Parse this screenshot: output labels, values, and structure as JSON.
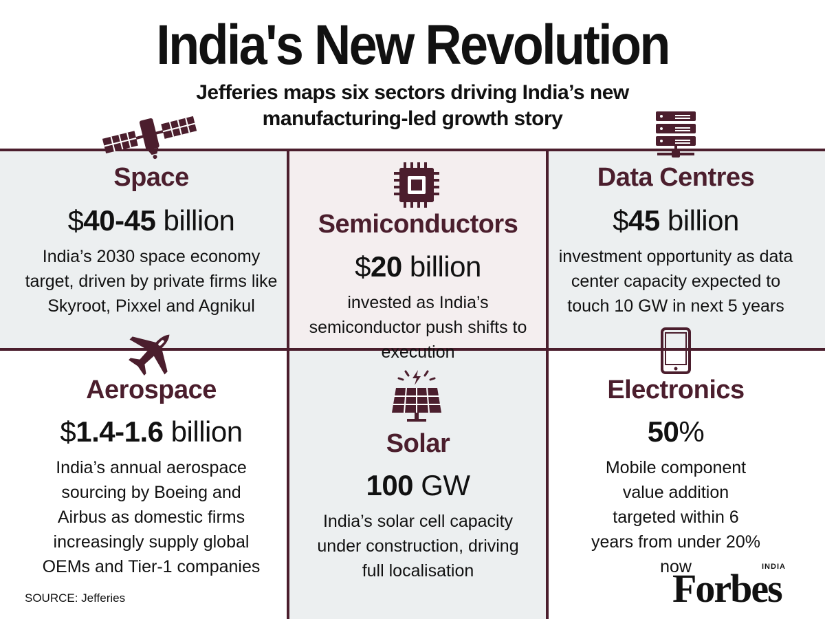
{
  "title": "India's New Revolution",
  "subtitle": "Jefferies maps six sectors driving India’s new manufacturing-led growth story",
  "colors": {
    "accent": "#4b1e2d",
    "panel_grey": "#eceff0",
    "panel_pink": "#f4eeef",
    "text": "#111111"
  },
  "sectors": [
    {
      "name": "Space",
      "stat_prefix": "$",
      "stat_value": "40-45",
      "stat_unit": " billion",
      "description": "India’s 2030 space economy target, driven by private firms like Skyroot, Pixxel and Agnikul",
      "icon": "satellite-icon"
    },
    {
      "name": "Semiconductors",
      "stat_prefix": "$",
      "stat_value": "20",
      "stat_unit": " billion",
      "description": "invested as India’s semiconductor push shifts to execution",
      "icon": "chip-icon"
    },
    {
      "name": "Data Centres",
      "stat_prefix": "$",
      "stat_value": "45",
      "stat_unit": " billion",
      "description": "investment opportunity as data center capacity expected to touch 10 GW in next 5 years",
      "icon": "server-icon"
    },
    {
      "name": "Aerospace",
      "stat_prefix": "$",
      "stat_value": "1.4-1.6",
      "stat_unit": " billion",
      "description": "India’s annual aerospace sourcing by Boeing and Airbus as domestic firms increasingly supply global OEMs and Tier-1 companies",
      "icon": "fighter-jet-icon"
    },
    {
      "name": "Solar",
      "stat_prefix": "",
      "stat_value": "100",
      "stat_unit": " GW",
      "description": "India’s solar cell capacity under construction, driving full localisation",
      "icon": "solar-panel-icon"
    },
    {
      "name": "Electronics",
      "stat_prefix": "",
      "stat_value": "50",
      "stat_unit": "%",
      "description": "Mobile component value addition targeted within 6 years from under 20% now",
      "icon": "mobile-phone-icon"
    }
  ],
  "source": "SOURCE: Jefferies",
  "logo": {
    "word": "Forbes",
    "edition": "INDIA"
  }
}
